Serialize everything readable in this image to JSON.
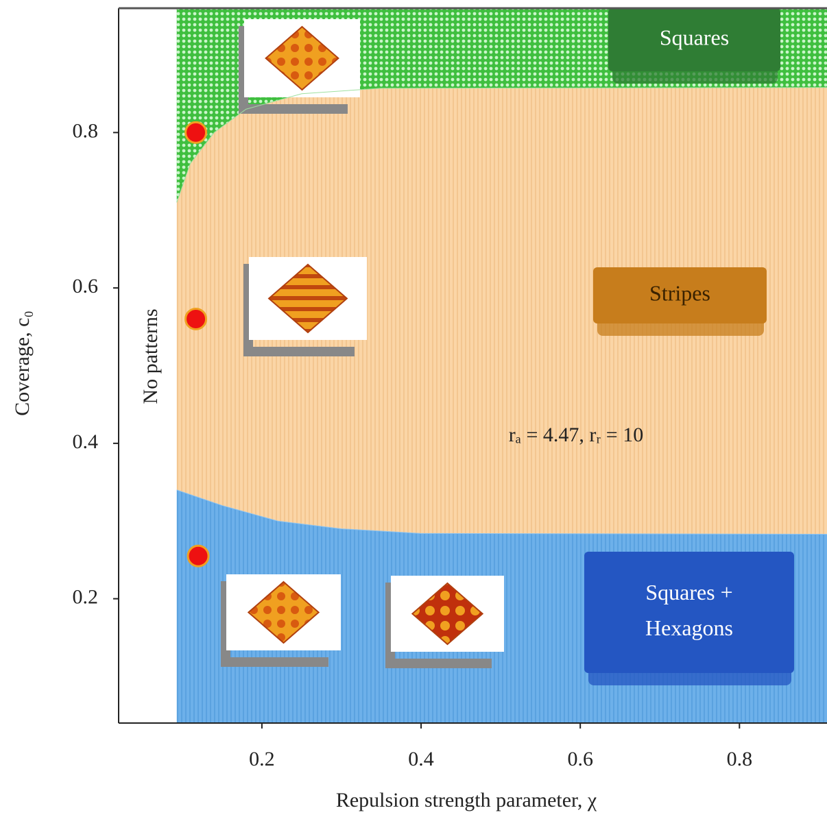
{
  "chart_data": {
    "type": "phase",
    "x_label": "Repulsion strength parameter, χ",
    "y_label": "Coverage, c₀",
    "xlim": [
      0.02,
      0.91
    ],
    "ylim": [
      0.04,
      0.96
    ],
    "xticks": [
      0.2,
      0.4,
      0.6,
      0.8
    ],
    "yticks": [
      0.2,
      0.4,
      0.6,
      0.8
    ],
    "annotation": "rₐ = 4.47, rᵣ = 10",
    "no_pattern_label": "No patterns",
    "regions": [
      {
        "name": "Squares",
        "color": "#5ccf5c",
        "box_color": "#2f7d34"
      },
      {
        "name": "Stripes",
        "color": "#fbd5a6",
        "box_color": "#c77d1c"
      },
      {
        "name": "Squares +",
        "name2": "Hexagons",
        "color": "#6db0ea",
        "box_color": "#2456c2"
      }
    ],
    "boundaries": [
      {
        "x": [
          0.093,
          0.11,
          0.14,
          0.18,
          0.25,
          0.35,
          0.91
        ],
        "y": [
          0.71,
          0.76,
          0.8,
          0.83,
          0.85,
          0.857,
          0.858
        ]
      },
      {
        "x": [
          0.093,
          0.15,
          0.22,
          0.3,
          0.4,
          0.91
        ],
        "y": [
          0.34,
          0.32,
          0.3,
          0.29,
          0.284,
          0.283
        ]
      }
    ],
    "points": {
      "color": "#ee1111",
      "x": [
        0.117,
        0.117,
        0.12
      ],
      "y": [
        0.8,
        0.56,
        0.255
      ]
    }
  }
}
